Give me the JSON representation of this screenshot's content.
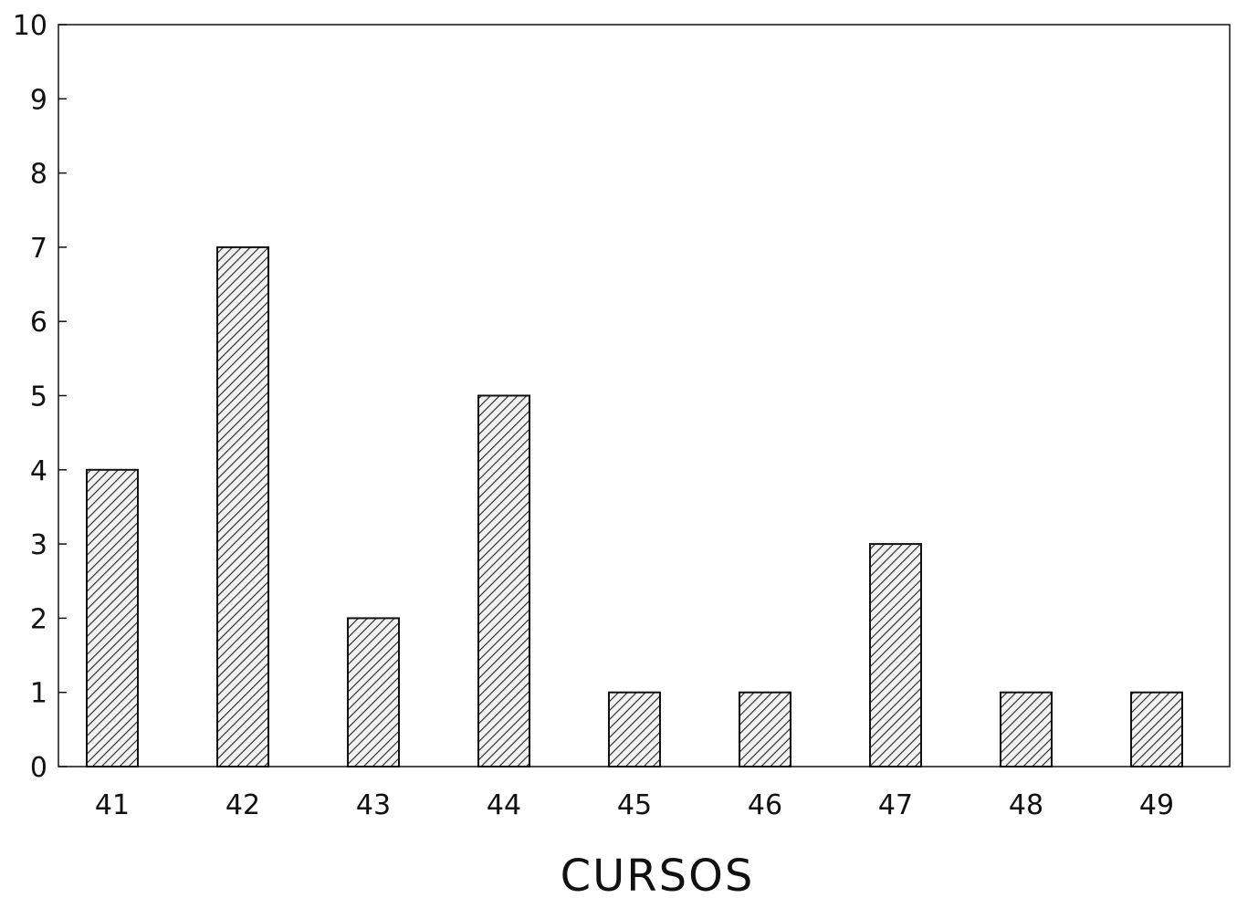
{
  "chart_data": {
    "type": "bar",
    "categories": [
      "41",
      "42",
      "43",
      "44",
      "45",
      "46",
      "47",
      "48",
      "49"
    ],
    "values": [
      4,
      7,
      2,
      5,
      1,
      1,
      3,
      1,
      1
    ],
    "title": "",
    "xlabel": "CURSOS",
    "ylabel": "",
    "ylim": [
      0,
      10
    ],
    "yticks": [
      0,
      1,
      2,
      3,
      4,
      5,
      6,
      7,
      8,
      9,
      10
    ],
    "grid": false,
    "legend": "none",
    "bar_fill": "diagonal-hatch",
    "colors": {
      "bar_stroke": "#111111",
      "hatch": "#222222",
      "axis": "#111111",
      "background": "#ffffff"
    }
  }
}
